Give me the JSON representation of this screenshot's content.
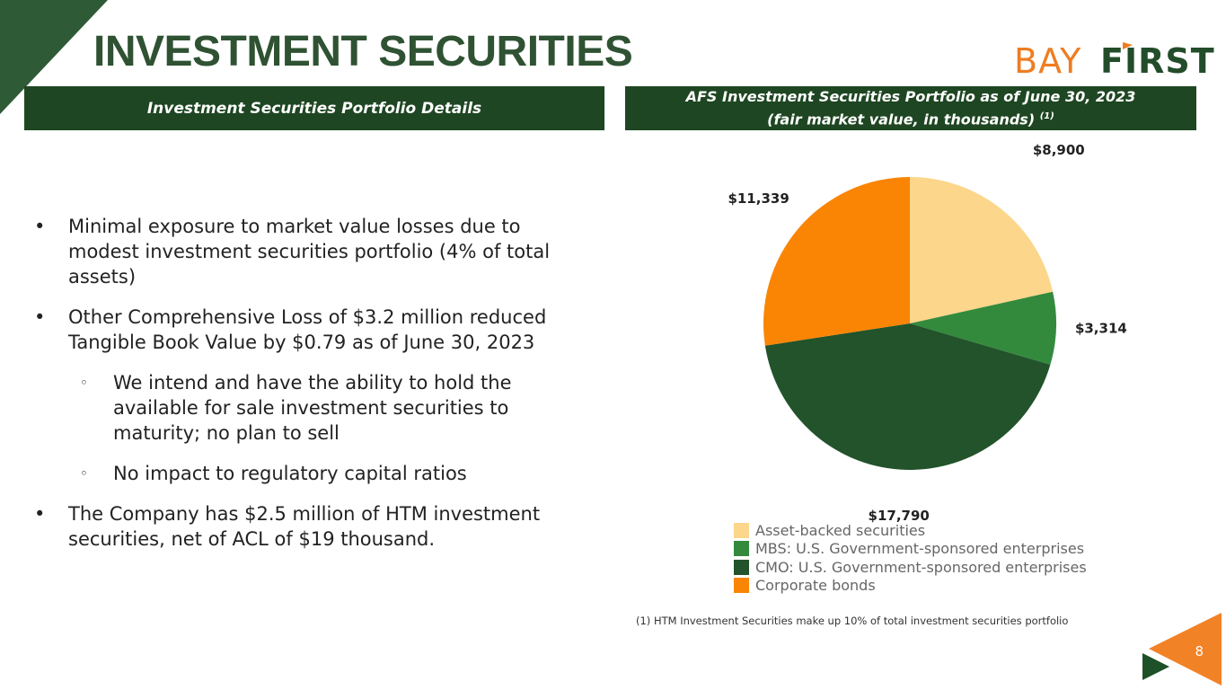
{
  "slide": {
    "title": "INVESTMENT SECURITIES",
    "page_number": "8"
  },
  "logo": {
    "part1": "BAY",
    "part2": "FIRST"
  },
  "headers": {
    "left": "Investment Securities Portfolio Details",
    "right_line1": "AFS Investment Securities Portfolio as of June 30, 2023",
    "right_line2": "(fair market value, in thousands)",
    "right_sup": "(1)"
  },
  "bullets": [
    {
      "level": 1,
      "marker": "•",
      "text": "Minimal exposure to market value losses due to modest investment securities portfolio (4% of total assets)"
    },
    {
      "level": 1,
      "marker": "•",
      "text": "Other Comprehensive Loss of $3.2 million reduced Tangible Book Value by $0.79 as of June 30, 2023"
    },
    {
      "level": 2,
      "marker": "◦",
      "text": "We intend and have the ability to hold the available for sale investment securities to maturity; no plan to sell"
    },
    {
      "level": 2,
      "marker": "◦",
      "text": "No impact to regulatory capital ratios"
    },
    {
      "level": 1,
      "marker": "•",
      "text": "The Company has $2.5 million of HTM investment securities, net of ACL of $19 thousand."
    }
  ],
  "chart_data": {
    "type": "pie",
    "categories": [
      "Asset-backed securities",
      "MBS: U.S. Government-sponsored enterprises",
      "CMO: U.S. Government-sponsored enterprises",
      "Corporate bonds"
    ],
    "values": [
      8900,
      3314,
      17790,
      11339
    ],
    "data_labels": [
      "$8,900",
      "$3,314",
      "$17,790",
      "$11,339"
    ],
    "colors": [
      "#fcd68b",
      "#338a3c",
      "#22532b",
      "#fa8505"
    ],
    "legend_position": "bottom"
  },
  "footnote": "(1) HTM Investment Securities make up 10% of total investment securities portfolio",
  "colors": {
    "title_green": "#2f5233",
    "header_green": "#1e4622",
    "accent_orange": "#f58025"
  }
}
